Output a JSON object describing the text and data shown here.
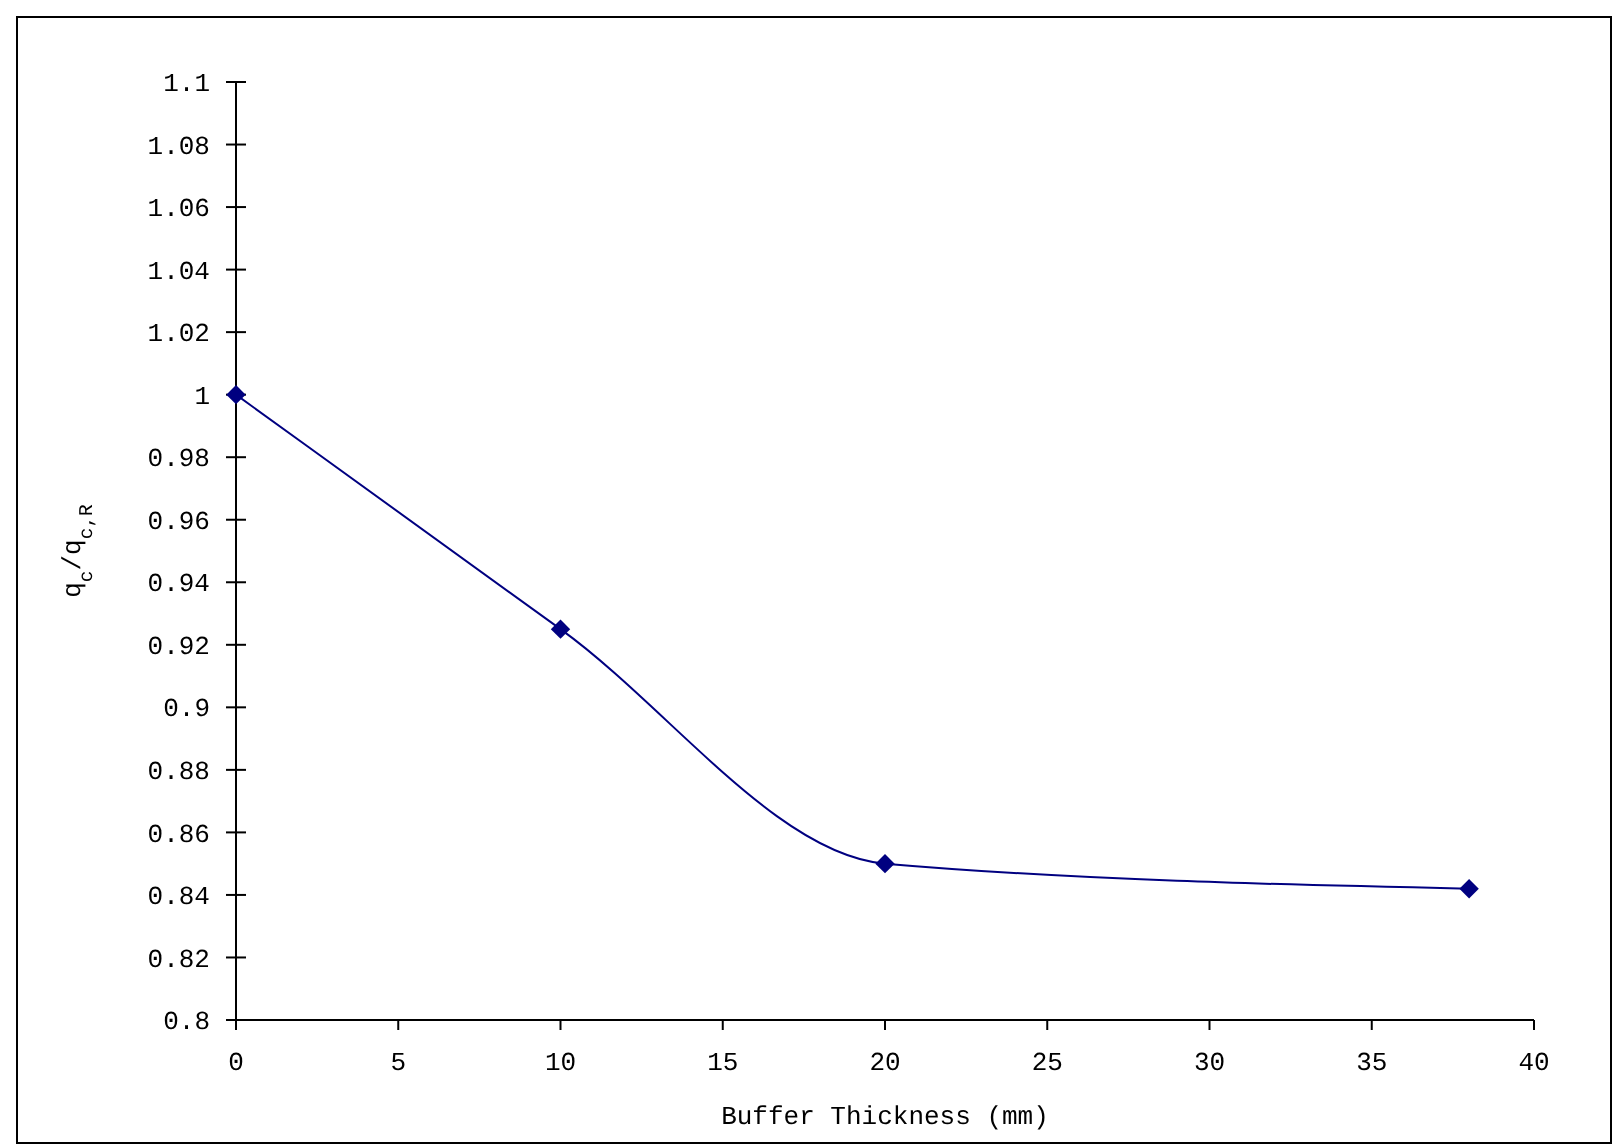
{
  "chart_data": {
    "type": "line",
    "xlabel": "Buffer Thickness (mm)",
    "ylabel": "q$_{c}$/q$_{c,R}$",
    "x": [
      0,
      10,
      20,
      38
    ],
    "series": [
      {
        "color": "#000080",
        "values": [
          1,
          0.925,
          0.85,
          0.842
        ]
      }
    ],
    "marker": "diamond",
    "line_style": "solid",
    "grid": false,
    "xlim": [
      0,
      40
    ],
    "xticks": [
      0,
      5,
      10,
      15,
      20,
      25,
      30,
      35,
      40
    ],
    "ylim": [
      0.8,
      1.1
    ],
    "yticks": [
      {
        "value": 0.8,
        "label": "0.8"
      },
      0.82,
      0.84,
      0.86,
      0.88,
      {
        "value": 0.9,
        "label": "0.9"
      },
      0.92,
      0.94,
      0.96,
      0.98,
      1,
      1.02,
      1.04,
      1.06,
      1.08,
      1.1
    ]
  }
}
